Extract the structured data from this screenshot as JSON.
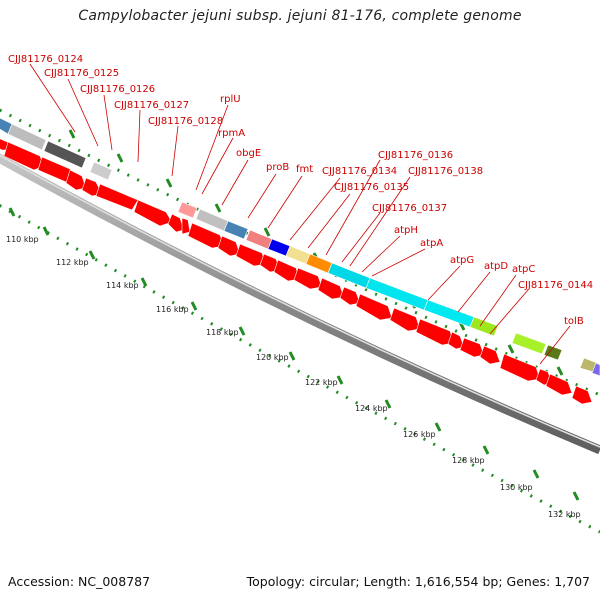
{
  "title": "Campylobacter jejuni subsp. jejuni 81-176, complete genome",
  "footer": {
    "accession": "Accession: NC_008787",
    "summary": "Topology: circular; Length: 1,616,554 bp; Genes: 1,707"
  },
  "axis": {
    "ticks": [
      "110 kbp",
      "112 kbp",
      "114 kbp",
      "116 kbp",
      "118 kbp",
      "120 kbp",
      "122 kbp",
      "124 kbp",
      "126 kbp",
      "128 kbp",
      "130 kbp",
      "132 kbp"
    ]
  },
  "genes": [
    "CJJ81176_0124",
    "CJJ81176_0125",
    "CJJ81176_0126",
    "CJJ81176_0127",
    "CJJ81176_0128",
    "rplU",
    "rpmA",
    "obgE",
    "proB",
    "fmt",
    "CJJ81176_0134",
    "CJJ81176_0135",
    "CJJ81176_0136",
    "CJJ81176_0137",
    "CJJ81176_0138",
    "atpH",
    "atpA",
    "atpG",
    "atpD",
    "atpC",
    "CJJ81176_0144",
    "tolB"
  ],
  "colors": {
    "label": "#cc0000",
    "leader": "#cc0000",
    "forward_arrow": "#ff0000",
    "tick_marks": "#228b22",
    "backbone": "#8a8a8a"
  }
}
